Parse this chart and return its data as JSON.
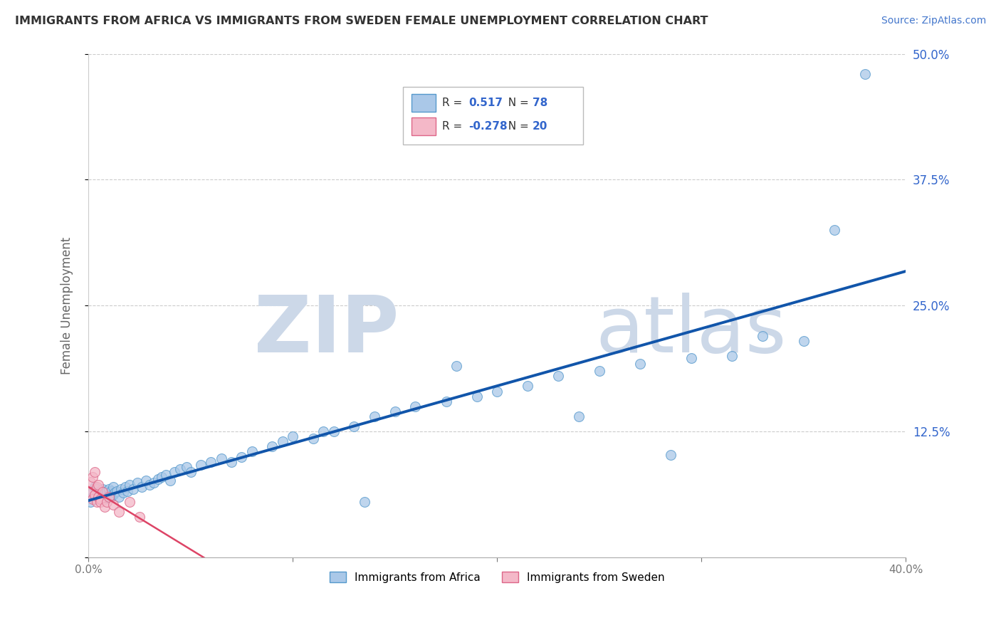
{
  "title": "IMMIGRANTS FROM AFRICA VS IMMIGRANTS FROM SWEDEN FEMALE UNEMPLOYMENT CORRELATION CHART",
  "source": "Source: ZipAtlas.com",
  "ylabel": "Female Unemployment",
  "xlim": [
    0.0,
    0.4
  ],
  "ylim": [
    0.0,
    0.5
  ],
  "xticks": [
    0.0,
    0.1,
    0.2,
    0.3,
    0.4
  ],
  "yticks": [
    0.0,
    0.125,
    0.25,
    0.375,
    0.5
  ],
  "ytick_labels": [
    "",
    "12.5%",
    "25.0%",
    "37.5%",
    "50.0%"
  ],
  "xtick_labels": [
    "0.0%",
    "",
    "",
    "",
    "40.0%"
  ],
  "series": [
    {
      "name": "Immigrants from Africa",
      "color": "#aac8e8",
      "edge_color": "#5599cc",
      "R": 0.517,
      "N": 78,
      "trend_color": "#1155aa",
      "trend_style": "solid",
      "x": [
        0.001,
        0.002,
        0.002,
        0.003,
        0.003,
        0.004,
        0.004,
        0.005,
        0.005,
        0.006,
        0.006,
        0.007,
        0.007,
        0.008,
        0.008,
        0.009,
        0.009,
        0.01,
        0.01,
        0.011,
        0.011,
        0.012,
        0.012,
        0.013,
        0.014,
        0.015,
        0.016,
        0.017,
        0.018,
        0.019,
        0.02,
        0.022,
        0.024,
        0.026,
        0.028,
        0.03,
        0.032,
        0.034,
        0.036,
        0.038,
        0.04,
        0.042,
        0.045,
        0.048,
        0.05,
        0.055,
        0.06,
        0.065,
        0.07,
        0.075,
        0.08,
        0.09,
        0.095,
        0.1,
        0.11,
        0.115,
        0.12,
        0.13,
        0.14,
        0.15,
        0.16,
        0.175,
        0.19,
        0.2,
        0.215,
        0.23,
        0.25,
        0.27,
        0.295,
        0.315,
        0.33,
        0.35,
        0.365,
        0.38,
        0.285,
        0.24,
        0.18,
        0.135
      ],
      "y": [
        0.055,
        0.06,
        0.065,
        0.058,
        0.07,
        0.062,
        0.068,
        0.058,
        0.064,
        0.06,
        0.066,
        0.062,
        0.068,
        0.058,
        0.064,
        0.06,
        0.066,
        0.062,
        0.068,
        0.06,
        0.066,
        0.062,
        0.07,
        0.064,
        0.066,
        0.06,
        0.068,
        0.064,
        0.07,
        0.066,
        0.072,
        0.068,
        0.074,
        0.07,
        0.076,
        0.072,
        0.074,
        0.078,
        0.08,
        0.082,
        0.076,
        0.085,
        0.088,
        0.09,
        0.085,
        0.092,
        0.095,
        0.098,
        0.095,
        0.1,
        0.105,
        0.11,
        0.115,
        0.12,
        0.118,
        0.125,
        0.125,
        0.13,
        0.14,
        0.145,
        0.15,
        0.155,
        0.16,
        0.165,
        0.17,
        0.18,
        0.185,
        0.192,
        0.198,
        0.2,
        0.22,
        0.215,
        0.325,
        0.48,
        0.102,
        0.14,
        0.19,
        0.055
      ]
    },
    {
      "name": "Immigrants from Sweden",
      "color": "#f4b8c8",
      "edge_color": "#dd6688",
      "R": -0.278,
      "N": 20,
      "trend_color": "#dd4466",
      "trend_style": "solid",
      "x": [
        0.001,
        0.001,
        0.002,
        0.002,
        0.003,
        0.003,
        0.004,
        0.004,
        0.005,
        0.005,
        0.006,
        0.006,
        0.007,
        0.008,
        0.009,
        0.01,
        0.012,
        0.015,
        0.02,
        0.025
      ],
      "y": [
        0.065,
        0.075,
        0.058,
        0.08,
        0.062,
        0.085,
        0.055,
        0.07,
        0.06,
        0.072,
        0.058,
        0.055,
        0.065,
        0.05,
        0.055,
        0.06,
        0.052,
        0.045,
        0.055,
        0.04
      ]
    }
  ],
  "watermark_zip": "ZIP",
  "watermark_atlas": "atlas",
  "watermark_color_zip": "#c5d5e8",
  "watermark_color_atlas": "#c5d5e8",
  "background_color": "#ffffff",
  "grid_color": "#cccccc"
}
